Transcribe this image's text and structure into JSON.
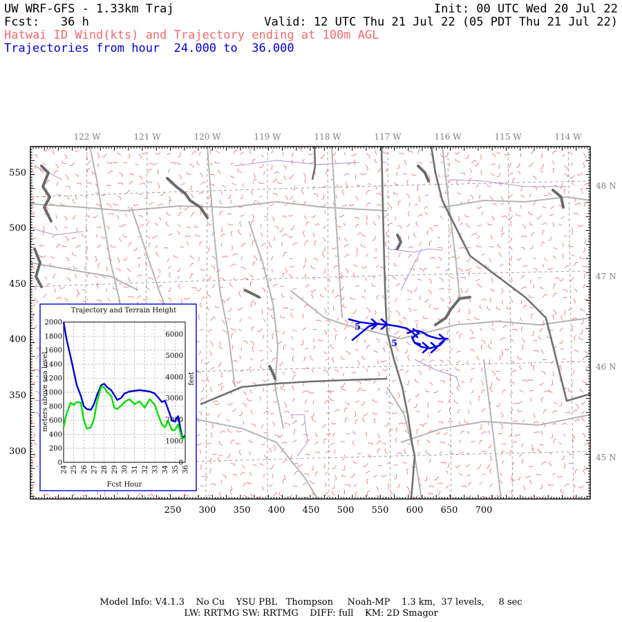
{
  "header": {
    "title": "UW WRF-GFS - 1.33km Traj",
    "init": "Init: 00 UTC Wed 20 Jul 22",
    "fcst": "Fcst:   36 h",
    "valid": "Valid: 12 UTC Thu 21 Jul 22 (05 PDT Thu 21 Jul 22)",
    "product": "Hatwai ID Wind(kts) and Trajectory ending at 100m AGL",
    "traj_range": "Trajectories from hour  24.000 to  36.000"
  },
  "map": {
    "lon_labels": [
      "122 W",
      "121 W",
      "120 W",
      "119 W",
      "118 W",
      "117 W",
      "116 W",
      "115 W",
      "114 W"
    ],
    "lat_labels": [
      "48 N",
      "47 N",
      "46 N",
      "45 N"
    ],
    "x_ticks": [
      "250",
      "300",
      "350",
      "400",
      "450",
      "500",
      "550",
      "600",
      "650",
      "700"
    ],
    "y_ticks": [
      "550",
      "500",
      "450",
      "400",
      "350",
      "300"
    ],
    "traj_hour_labels": [
      "5",
      "5"
    ],
    "colors": {
      "barbs": "#f07878",
      "trajectory": "#0000e0",
      "coast": "#707070",
      "roads": "#b0b0b0",
      "state": "#707070",
      "county": "#a080c0"
    }
  },
  "chart_data": {
    "type": "line",
    "title": "Trajectory and Terrain Height",
    "xlabel": "Fcst Hour",
    "ylabel": "meters above sea level",
    "y2label": "feet",
    "xlim": [
      24,
      36
    ],
    "ylim": [
      0,
      2000
    ],
    "y2lim": [
      0,
      6562
    ],
    "x_tick_labels": [
      "24",
      "25",
      "26",
      "27",
      "28",
      "29",
      "30",
      "31",
      "32",
      "33",
      "34",
      "35",
      "36"
    ],
    "y_tick_labels": [
      "0",
      "200",
      "400",
      "600",
      "800",
      "1000",
      "1200",
      "1400",
      "1600",
      "1800",
      "2000"
    ],
    "y2_tick_labels": [
      "0",
      "1000",
      "2000",
      "3000",
      "4000",
      "5000",
      "6000"
    ],
    "grid": true,
    "series": [
      {
        "color": "#0000cc",
        "x": [
          24.0,
          24.3,
          24.7,
          25.0,
          25.3,
          25.7,
          26.0,
          26.3,
          26.7,
          27.0,
          27.3,
          27.7,
          28.0,
          28.3,
          28.7,
          29.0,
          29.3,
          29.7,
          30.0,
          30.5,
          31.0,
          31.5,
          32.0,
          32.5,
          33.0,
          33.3,
          33.7,
          34.0,
          34.3,
          34.7,
          35.0,
          35.3,
          35.7,
          36.0
        ],
        "y": [
          2000,
          1750,
          1500,
          1300,
          1100,
          950,
          800,
          760,
          750,
          830,
          960,
          1100,
          1120,
          1070,
          1030,
          960,
          890,
          920,
          980,
          1010,
          1020,
          1030,
          1020,
          1010,
          980,
          930,
          860,
          880,
          760,
          600,
          580,
          660,
          350,
          380
        ]
      },
      {
        "color": "#00dd00",
        "x": [
          24.0,
          24.3,
          24.7,
          25.0,
          25.3,
          25.7,
          26.0,
          26.3,
          26.7,
          27.0,
          27.3,
          27.7,
          28.0,
          28.3,
          28.7,
          29.0,
          29.3,
          29.7,
          30.0,
          30.5,
          31.0,
          31.5,
          32.0,
          32.5,
          33.0,
          33.3,
          33.7,
          34.0,
          34.3,
          34.7,
          35.0,
          35.3,
          35.7,
          36.0
        ],
        "y": [
          500,
          700,
          850,
          820,
          860,
          850,
          600,
          480,
          500,
          620,
          860,
          1080,
          1070,
          1000,
          950,
          780,
          760,
          810,
          860,
          900,
          830,
          870,
          780,
          900,
          820,
          690,
          540,
          500,
          590,
          460,
          460,
          540,
          330,
          360
        ]
      }
    ]
  },
  "footer": {
    "line1": "Model Info: V4.1.3    No Cu    YSU PBL   Thompson     Noah-MP    1.3 km,  37 levels,     8 sec",
    "line2": "LW: RRTMG SW: RRTMG    DIFF: full    KM: 2D Smagor"
  }
}
